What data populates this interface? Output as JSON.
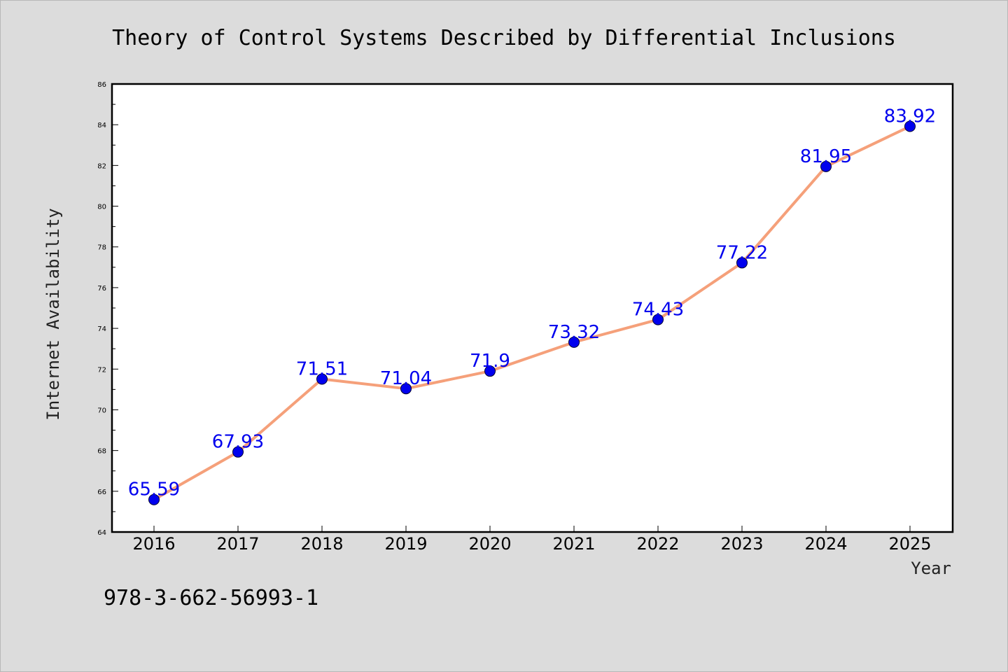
{
  "chart_data": {
    "type": "line",
    "title": "Theory of Control Systems Described by Differential Inclusions",
    "xlabel": "Year",
    "ylabel": "Internet Availability",
    "categories": [
      "2016",
      "2017",
      "2018",
      "2019",
      "2020",
      "2021",
      "2022",
      "2023",
      "2024",
      "2025"
    ],
    "series": [
      {
        "values": [
          65.59,
          67.93,
          71.51,
          71.04,
          71.9,
          73.32,
          74.43,
          77.22,
          81.95,
          83.92
        ],
        "labels": [
          "65.59",
          "67.93",
          "71.51",
          "71.04",
          "71.9",
          "73.32",
          "74.43",
          "77.22",
          "81.95",
          "83.92"
        ],
        "line_color": "#f5a07a",
        "marker_color": "#0000ee",
        "label_color": "#0000ee"
      }
    ],
    "ylim": [
      64,
      86
    ],
    "yticks": [
      "64",
      "66",
      "68",
      "70",
      "72",
      "74",
      "76",
      "78",
      "80",
      "82",
      "84",
      "86"
    ],
    "grid": false,
    "legend": "none"
  },
  "footer": {
    "isbn": "978-3-662-56993-1"
  },
  "colors": {
    "background": "#dcdcdc",
    "plot_background": "#ffffff"
  }
}
